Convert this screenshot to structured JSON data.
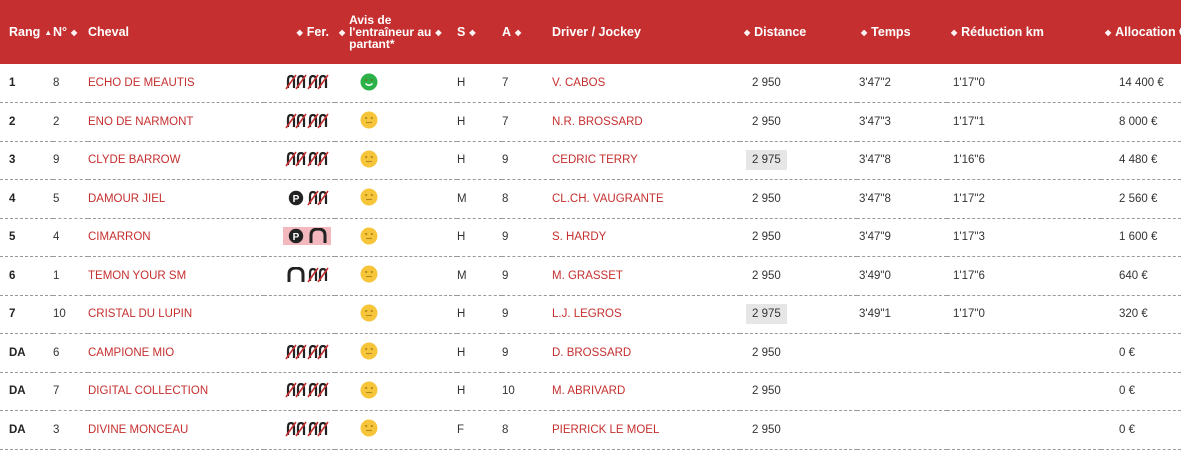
{
  "headers": {
    "rang": "Rang",
    "num": "N°",
    "cheval": "Cheval",
    "fer": "Fer.",
    "avis_line1": "Avis de",
    "avis_line2": "l'entraîneur au",
    "avis_line3": "partant*",
    "sexe": "S",
    "age": "A",
    "driver": "Driver / Jockey",
    "distance": "Distance",
    "temps": "Temps",
    "reduction": "Réduction km",
    "allocation": "Allocation €"
  },
  "sort_up_glyph": "▲",
  "sort_both_glyph": "◆",
  "colors": {
    "header_bg": "#c62f2f",
    "link": "#c62f2f",
    "smiley_green": "#2db24a",
    "smiley_yellow": "#f6c53a",
    "highlight_cell": "#e6e6e6",
    "highlight_shoe": "#f2b8bd"
  },
  "rows": [
    {
      "rang": "1",
      "num": "8",
      "cheval": "ECHO DE MEAUTIS",
      "ferrure": [
        "barefoot-crossed-icon",
        "barefoot-crossed-icon"
      ],
      "ferrure_hl": false,
      "avis": "green",
      "sexe": "H",
      "age": "7",
      "driver": "V. CABOS",
      "distance": "2 950",
      "distance_hl": false,
      "temps": "3'47\"2",
      "reduction": "1'17\"0",
      "allocation": "14 400 €"
    },
    {
      "rang": "2",
      "num": "2",
      "cheval": "ENO DE NARMONT",
      "ferrure": [
        "barefoot-crossed-icon",
        "barefoot-crossed-icon"
      ],
      "ferrure_hl": false,
      "avis": "yellow",
      "sexe": "H",
      "age": "7",
      "driver": "N.R. BROSSARD",
      "distance": "2 950",
      "distance_hl": false,
      "temps": "3'47\"3",
      "reduction": "1'17\"1",
      "allocation": "8 000 €"
    },
    {
      "rang": "3",
      "num": "9",
      "cheval": "CLYDE BARROW",
      "ferrure": [
        "barefoot-crossed-icon",
        "barefoot-crossed-icon"
      ],
      "ferrure_hl": false,
      "avis": "yellow",
      "sexe": "H",
      "age": "9",
      "driver": "CEDRIC TERRY",
      "distance": "2 975",
      "distance_hl": true,
      "temps": "3'47\"8",
      "reduction": "1'16\"6",
      "allocation": "4 480 €"
    },
    {
      "rang": "4",
      "num": "5",
      "cheval": "DAMOUR JIEL",
      "ferrure": [
        "plate-icon",
        "barefoot-crossed-icon"
      ],
      "ferrure_hl": false,
      "avis": "yellow",
      "sexe": "M",
      "age": "8",
      "driver": "CL.CH. VAUGRANTE",
      "distance": "2 950",
      "distance_hl": false,
      "temps": "3'47\"8",
      "reduction": "1'17\"2",
      "allocation": "2 560 €"
    },
    {
      "rang": "5",
      "num": "4",
      "cheval": "CIMARRON",
      "ferrure": [
        "plate-icon",
        "horseshoe-icon"
      ],
      "ferrure_hl": true,
      "avis": "yellow",
      "sexe": "H",
      "age": "9",
      "driver": "S. HARDY",
      "distance": "2 950",
      "distance_hl": false,
      "temps": "3'47\"9",
      "reduction": "1'17\"3",
      "allocation": "1 600 €"
    },
    {
      "rang": "6",
      "num": "1",
      "cheval": "TEMON YOUR SM",
      "ferrure": [
        "horseshoe-icon",
        "barefoot-crossed-icon"
      ],
      "ferrure_hl": false,
      "avis": "yellow",
      "sexe": "M",
      "age": "9",
      "driver": "M. GRASSET",
      "distance": "2 950",
      "distance_hl": false,
      "temps": "3'49\"0",
      "reduction": "1'17\"6",
      "allocation": "640 €"
    },
    {
      "rang": "7",
      "num": "10",
      "cheval": "CRISTAL DU LUPIN",
      "ferrure": [],
      "ferrure_hl": false,
      "avis": "yellow",
      "sexe": "H",
      "age": "9",
      "driver": "L.J. LEGROS",
      "distance": "2 975",
      "distance_hl": true,
      "temps": "3'49\"1",
      "reduction": "1'17\"0",
      "allocation": "320 €"
    },
    {
      "rang": "DA",
      "num": "6",
      "cheval": "CAMPIONE MIO",
      "ferrure": [
        "barefoot-crossed-icon",
        "barefoot-crossed-icon"
      ],
      "ferrure_hl": false,
      "avis": "yellow",
      "sexe": "H",
      "age": "9",
      "driver": "D. BROSSARD",
      "distance": "2 950",
      "distance_hl": false,
      "temps": "",
      "reduction": "",
      "allocation": "0 €"
    },
    {
      "rang": "DA",
      "num": "7",
      "cheval": "DIGITAL COLLECTION",
      "ferrure": [
        "barefoot-crossed-icon",
        "barefoot-crossed-icon"
      ],
      "ferrure_hl": false,
      "avis": "yellow",
      "sexe": "H",
      "age": "10",
      "driver": "M. ABRIVARD",
      "distance": "2 950",
      "distance_hl": false,
      "temps": "",
      "reduction": "",
      "allocation": "0 €"
    },
    {
      "rang": "DA",
      "num": "3",
      "cheval": "DIVINE MONCEAU",
      "ferrure": [
        "barefoot-crossed-icon",
        "barefoot-crossed-icon"
      ],
      "ferrure_hl": false,
      "avis": "yellow",
      "sexe": "F",
      "age": "8",
      "driver": "PIERRICK LE MOEL",
      "distance": "2 950",
      "distance_hl": false,
      "temps": "",
      "reduction": "",
      "allocation": "0 €"
    }
  ]
}
